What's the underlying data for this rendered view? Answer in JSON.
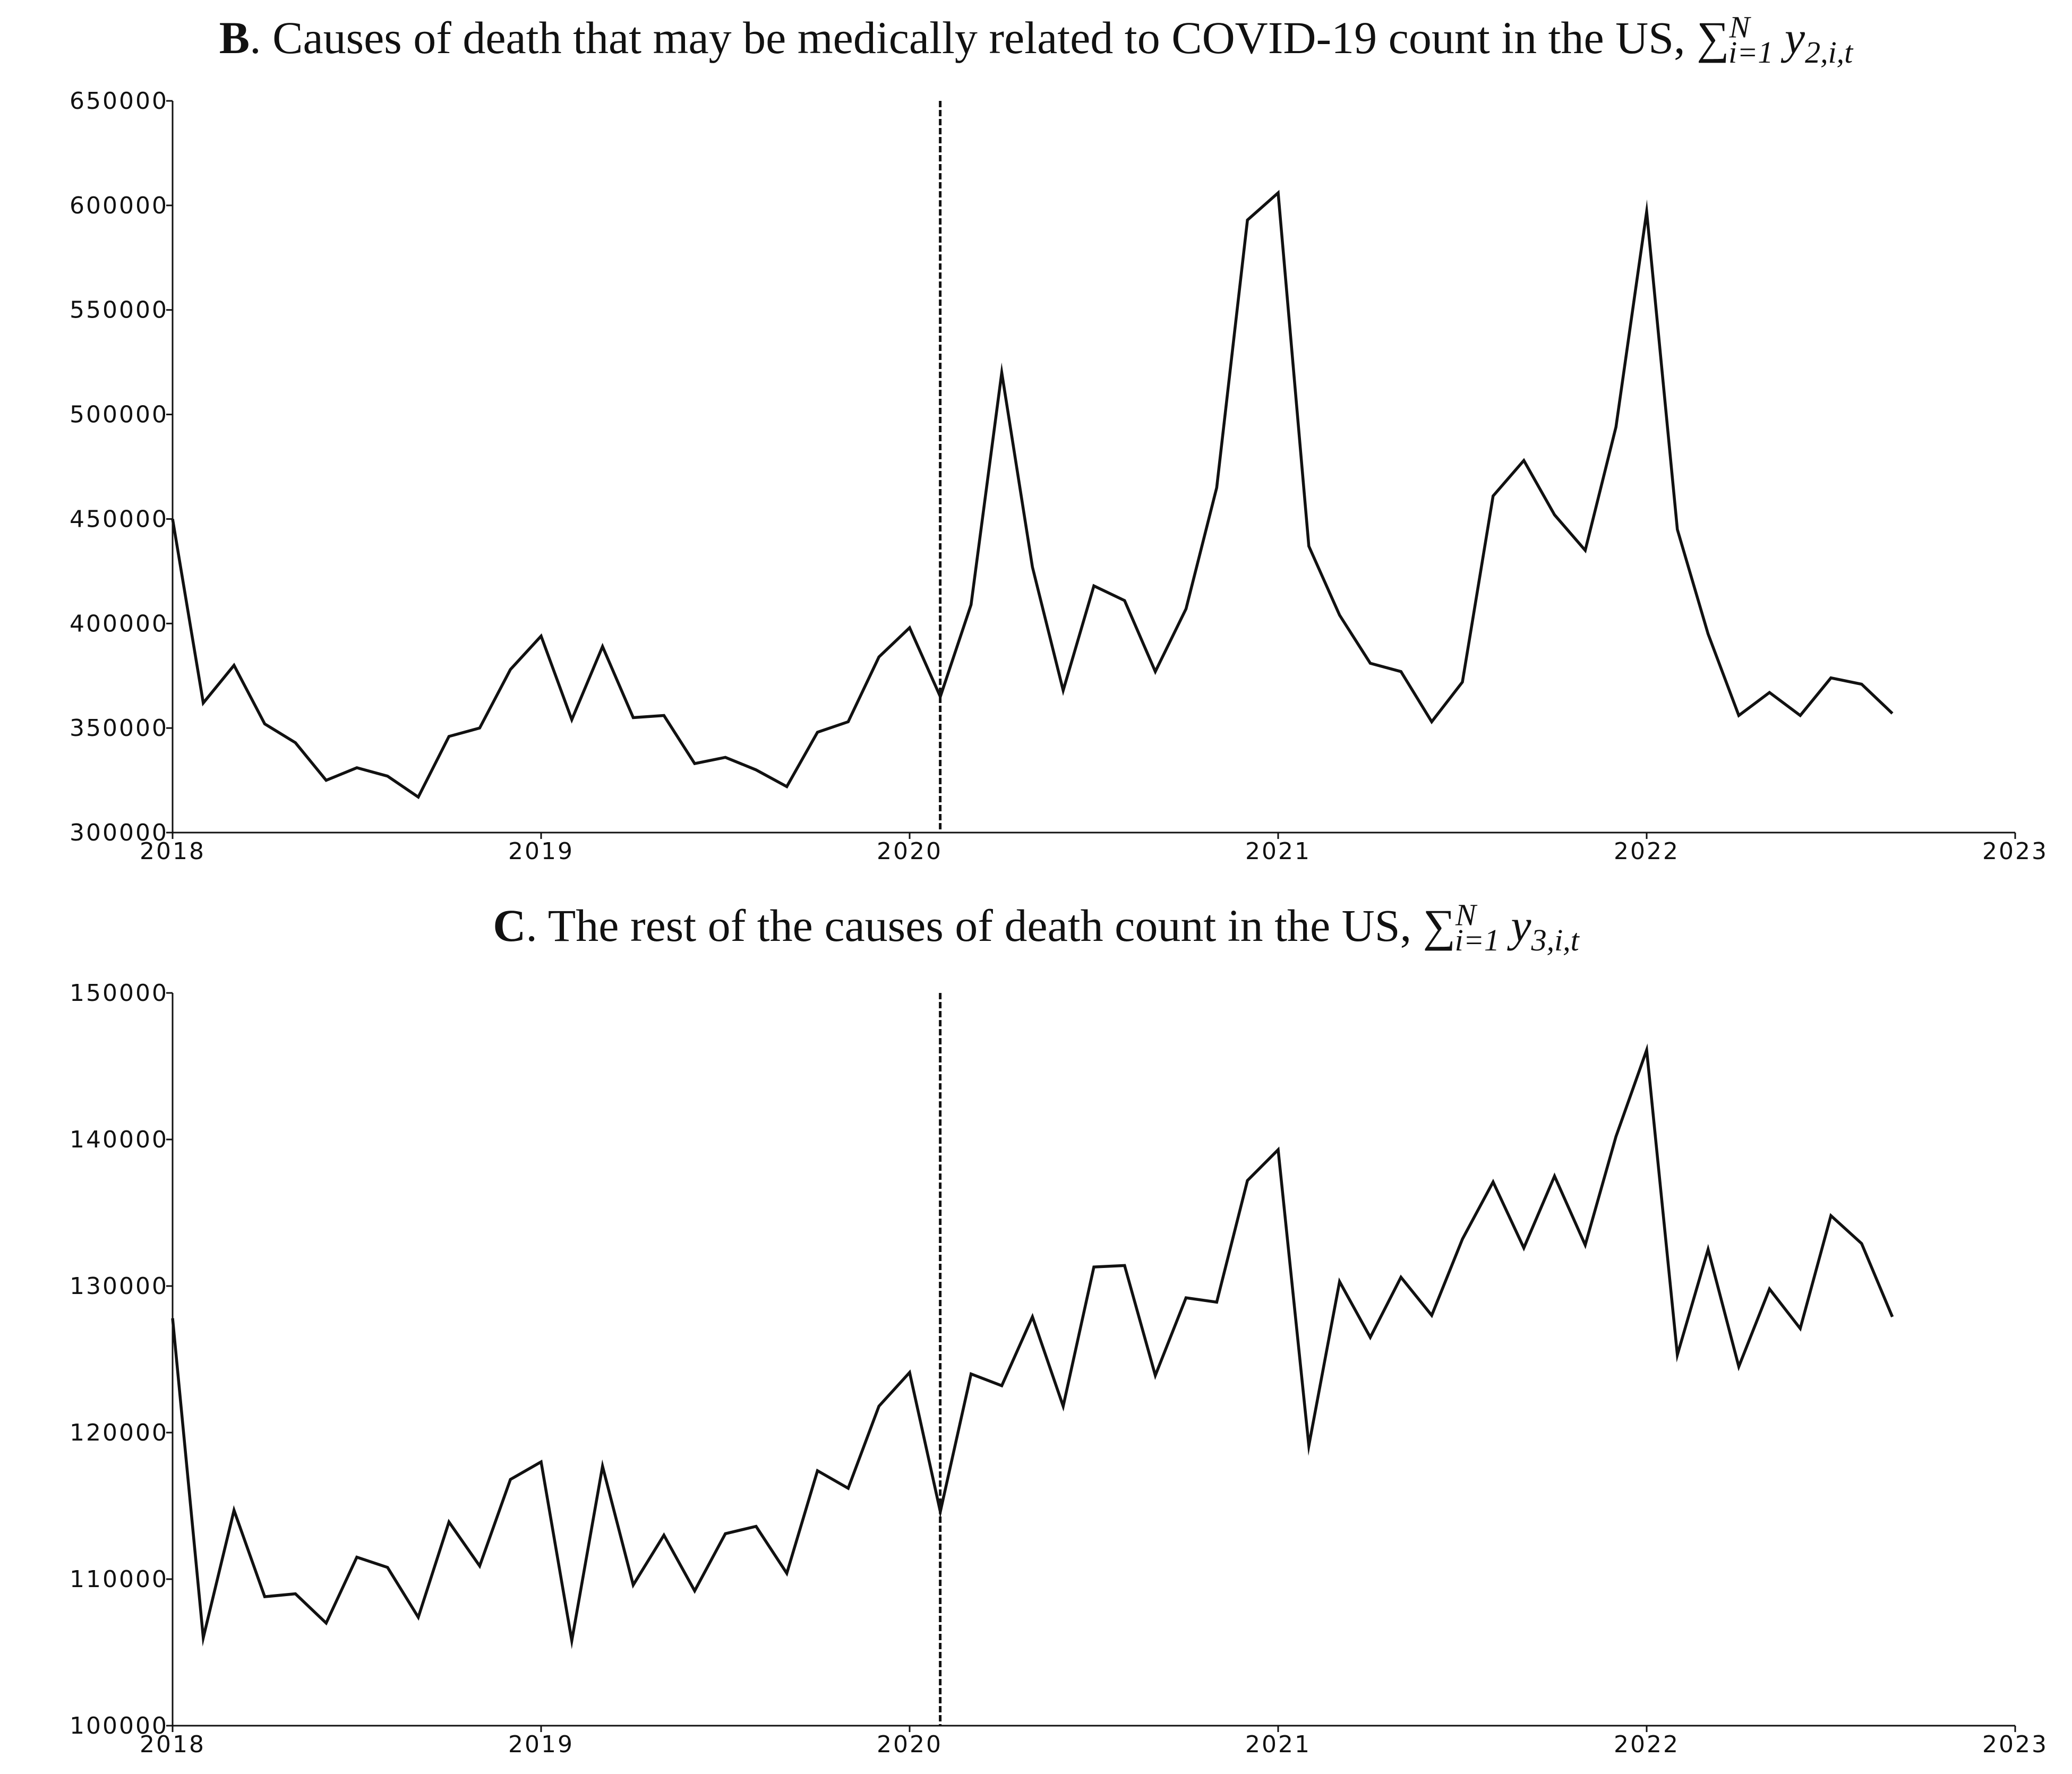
{
  "chart_data": [
    {
      "type": "line",
      "panel_letter": "B",
      "title": ". Causes of death that may be medically related to COVID-19 count in the US, ",
      "math_symbol": "∑",
      "math_sub": "i=1",
      "math_sup": "N",
      "math_var": "y",
      "math_var_sub": "2,i,t",
      "xlabel": "",
      "ylabel": "",
      "xlim": [
        2018,
        2023
      ],
      "ylim": [
        300000,
        650000
      ],
      "x_ticks": [
        "2018",
        "2019",
        "2020",
        "2021",
        "2022",
        "2023"
      ],
      "y_ticks": [
        "300000",
        "350000",
        "400000",
        "450000",
        "500000",
        "550000",
        "600000",
        "650000"
      ],
      "vline_x": 2020.083,
      "vline_style": "dashed",
      "grid": false,
      "series": [
        {
          "name": "y2",
          "color": "#111111",
          "start_year": 2018,
          "step_months": 1,
          "values": [
            450000,
            362000,
            380000,
            352000,
            343000,
            325000,
            331000,
            327000,
            317000,
            346000,
            350000,
            378000,
            394000,
            354000,
            389000,
            355000,
            356000,
            333000,
            336000,
            330000,
            322000,
            348000,
            353000,
            384000,
            398000,
            365000,
            409000,
            520000,
            427000,
            368000,
            418000,
            411000,
            377000,
            407000,
            465000,
            593000,
            606000,
            437000,
            404000,
            381000,
            377000,
            353000,
            372000,
            461000,
            478000,
            452000,
            435000,
            494000,
            597000,
            445000,
            395000,
            356000,
            367000,
            356000,
            374000,
            371000,
            357000
          ]
        }
      ]
    },
    {
      "type": "line",
      "panel_letter": "C",
      "title": ". The rest of the causes of death count in the US, ",
      "math_symbol": "∑",
      "math_sub": "i=1",
      "math_sup": "N",
      "math_var": "y",
      "math_var_sub": "3,i,t",
      "xlabel": "",
      "ylabel": "",
      "xlim": [
        2018,
        2023
      ],
      "ylim": [
        100000,
        150000
      ],
      "x_ticks": [
        "2018",
        "2019",
        "2020",
        "2021",
        "2022",
        "2023"
      ],
      "y_ticks": [
        "100000",
        "110000",
        "120000",
        "130000",
        "140000",
        "150000"
      ],
      "vline_x": 2020.083,
      "vline_style": "dashed",
      "grid": false,
      "series": [
        {
          "name": "y3",
          "color": "#111111",
          "start_year": 2018,
          "step_months": 1,
          "values": [
            127800,
            106000,
            114700,
            108800,
            109000,
            107000,
            111500,
            110800,
            107400,
            113900,
            110900,
            116800,
            118000,
            105800,
            117700,
            109600,
            113000,
            109200,
            113100,
            113600,
            110400,
            117400,
            116200,
            121800,
            124100,
            114600,
            124000,
            123200,
            127900,
            121800,
            131300,
            131400,
            123900,
            129200,
            128900,
            137200,
            139300,
            119100,
            130300,
            126500,
            130600,
            128000,
            133200,
            137100,
            132600,
            137500,
            132800,
            140200,
            146100,
            125300,
            132500,
            124500,
            129800,
            127100,
            134800,
            132900,
            127900
          ]
        }
      ]
    }
  ]
}
